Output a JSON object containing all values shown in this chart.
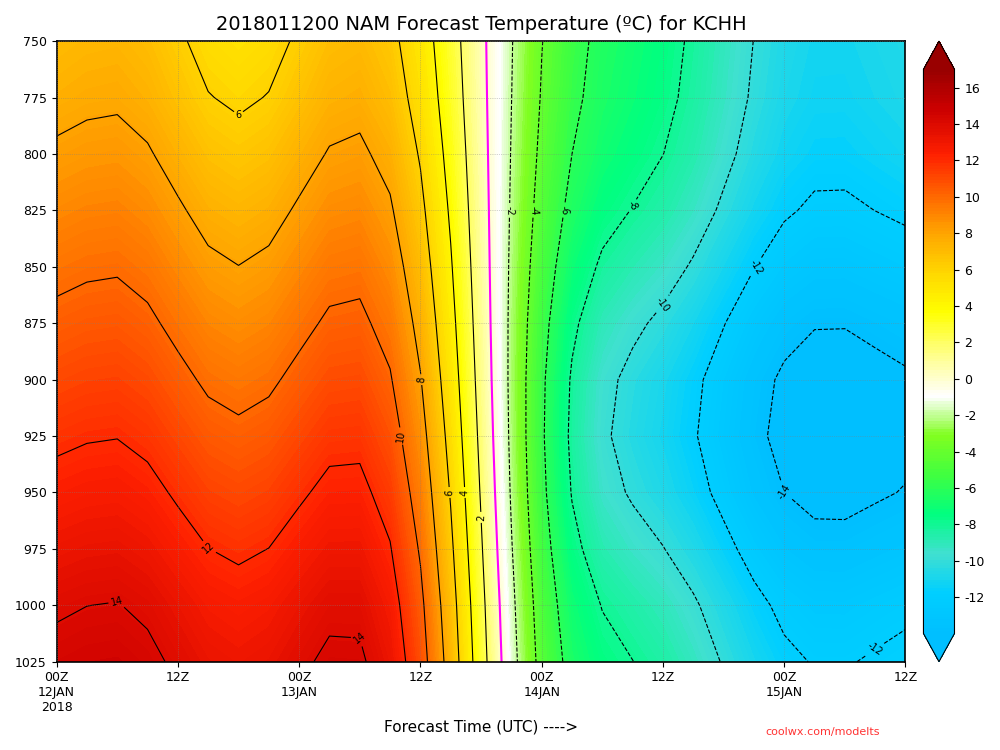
{
  "title": "2018011200 NAM Forecast Temperature (ºC) for KCHH",
  "xlabel": "Forecast Time (UTC) ---->",
  "colorbar_label": "",
  "pressure_levels": [
    750,
    775,
    800,
    825,
    850,
    875,
    900,
    925,
    950,
    975,
    1000,
    1025
  ],
  "time_hours": [
    0,
    3,
    6,
    9,
    12,
    15,
    18,
    21,
    24,
    27,
    30,
    33,
    36,
    39,
    42,
    45,
    48,
    51,
    54,
    57,
    60,
    63,
    66,
    69,
    72,
    75,
    78,
    81,
    84
  ],
  "xtick_labels": [
    "00Z\n12JAN\n2018",
    "12Z",
    "00Z\n13JAN",
    "12Z",
    "00Z\n14JAN",
    "12Z",
    "00Z\n15JAN",
    "12Z"
  ],
  "xtick_positions": [
    0,
    12,
    24,
    36,
    48,
    60,
    72,
    84
  ],
  "colorbar_ticks": [
    -12,
    -10,
    -8,
    -6,
    -4,
    -2,
    0,
    2,
    4,
    6,
    8,
    10,
    12,
    14,
    16
  ],
  "vmin": -14,
  "vmax": 17,
  "contour_levels": [
    -14,
    -12,
    -10,
    -8,
    -6,
    -4,
    -2,
    0,
    2,
    4,
    6,
    8,
    10,
    12,
    14,
    16
  ],
  "zero_contour_color": "magenta",
  "background_color": "#f5f5f5",
  "watermark": "coolwx.com/modelts",
  "title_fontsize": 14,
  "axis_label_fontsize": 11,
  "tick_fontsize": 9
}
